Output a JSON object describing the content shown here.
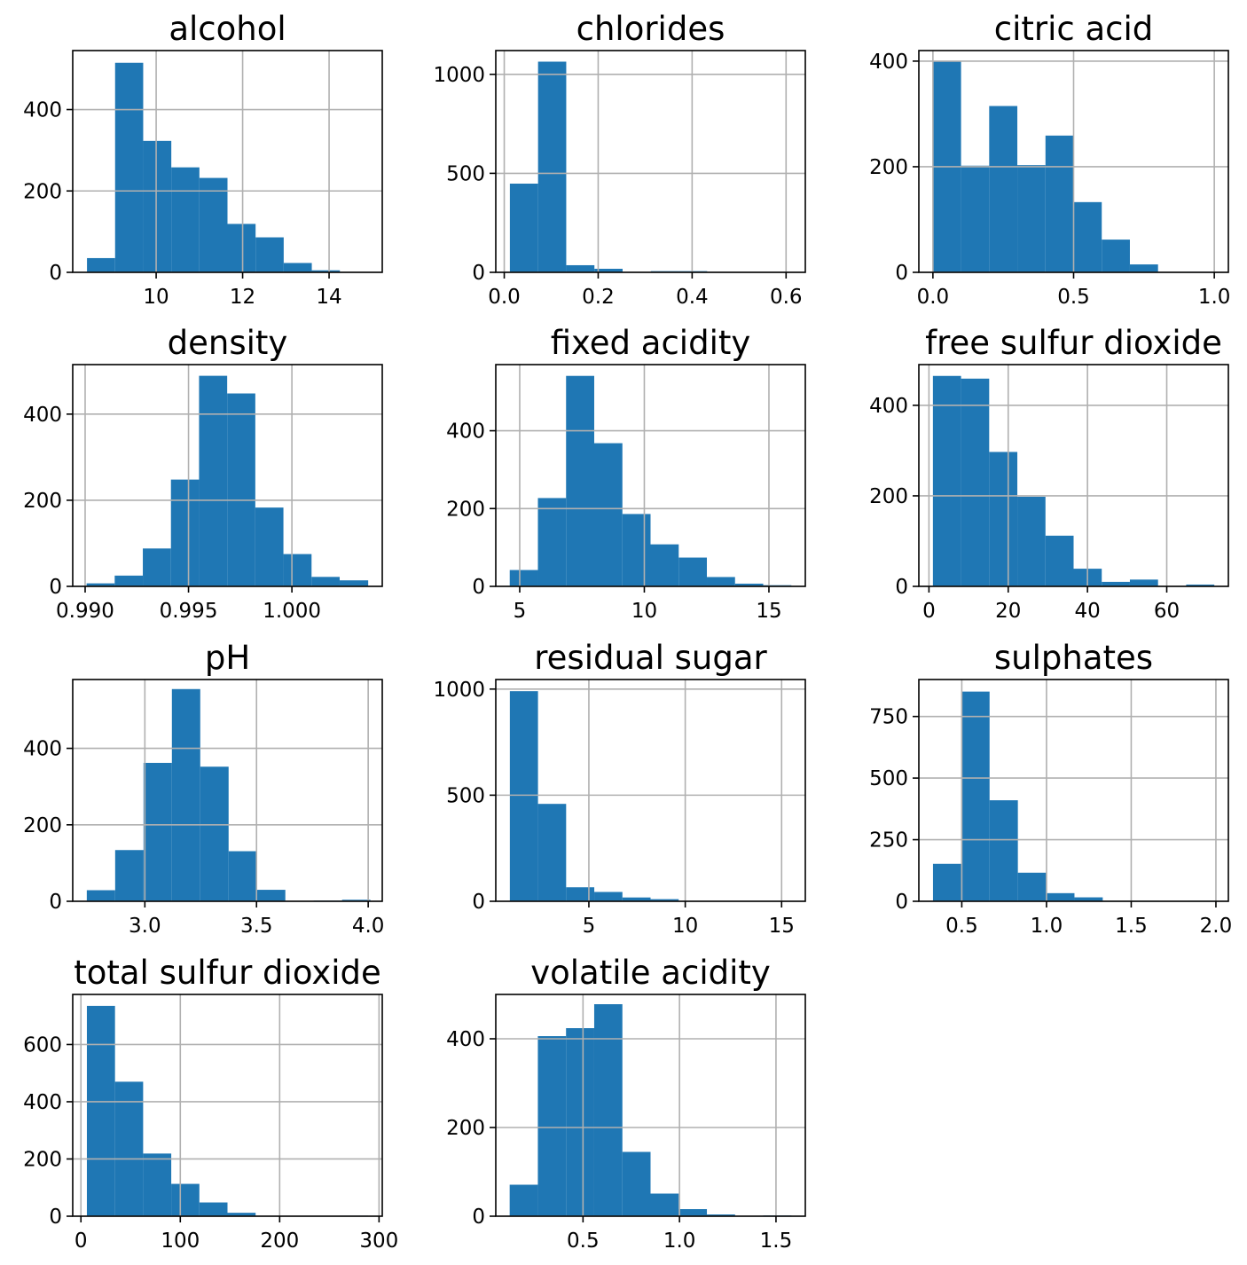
{
  "figure": {
    "bar_color": "#1f77b4",
    "grid_color": "#b0b0b0"
  },
  "chart_data": [
    {
      "type": "bar",
      "title": "alcohol",
      "grid": true,
      "xlim": [
        8.07,
        15.23
      ],
      "ylim": [
        0,
        545
      ],
      "bin_edges": [
        8.4,
        9.05,
        9.7,
        10.35,
        11.0,
        11.65,
        12.3,
        12.95,
        13.6,
        14.25,
        14.9
      ],
      "values": [
        35,
        515,
        323,
        258,
        232,
        119,
        86,
        23,
        5,
        1
      ],
      "xticks": [
        10,
        12,
        14
      ],
      "xtick_labels": [
        "10",
        "12",
        "14"
      ],
      "yticks": [
        0,
        200,
        400
      ],
      "ytick_labels": [
        "0",
        "200",
        "400"
      ]
    },
    {
      "type": "bar",
      "title": "chlorides",
      "grid": true,
      "xlim": [
        -0.018,
        0.641
      ],
      "ylim": [
        0,
        1120
      ],
      "bin_edges": [
        0.012,
        0.072,
        0.132,
        0.192,
        0.252,
        0.312,
        0.372,
        0.432,
        0.492,
        0.552,
        0.611
      ],
      "values": [
        448,
        1064,
        36,
        18,
        2,
        6,
        6,
        2,
        0,
        2
      ],
      "xticks": [
        0.0,
        0.2,
        0.4,
        0.6
      ],
      "xtick_labels": [
        "0.0",
        "0.2",
        "0.4",
        "0.6"
      ],
      "yticks": [
        0,
        500,
        1000
      ],
      "ytick_labels": [
        "0",
        "500",
        "1000"
      ]
    },
    {
      "type": "bar",
      "title": "citric acid",
      "grid": true,
      "xlim": [
        -0.05,
        1.05
      ],
      "ylim": [
        0,
        420
      ],
      "bin_edges": [
        0.0,
        0.1,
        0.2,
        0.3,
        0.4,
        0.5,
        0.6,
        0.7,
        0.8,
        0.9,
        1.0
      ],
      "values": [
        399,
        202,
        315,
        203,
        259,
        133,
        62,
        15,
        0,
        1
      ],
      "xticks": [
        0.0,
        0.5,
        1.0
      ],
      "xtick_labels": [
        "0.0",
        "0.5",
        "1.0"
      ],
      "yticks": [
        0,
        200,
        400
      ],
      "ytick_labels": [
        "0",
        "200",
        "400"
      ]
    },
    {
      "type": "bar",
      "title": "density",
      "grid": true,
      "xlim": [
        0.9894,
        1.00437
      ],
      "ylim": [
        0,
        515
      ],
      "bin_edges": [
        0.99007,
        0.99143,
        0.99279,
        0.99415,
        0.99551,
        0.99687,
        0.99823,
        0.99959,
        1.00095,
        1.00231,
        1.00369
      ],
      "values": [
        7,
        25,
        88,
        248,
        489,
        448,
        183,
        75,
        22,
        14
      ],
      "xticks": [
        0.99,
        0.995,
        1.0
      ],
      "xtick_labels": [
        "0.990",
        "0.995",
        "1.000"
      ],
      "yticks": [
        0,
        200,
        400
      ],
      "ytick_labels": [
        "0",
        "200",
        "400"
      ]
    },
    {
      "type": "bar",
      "title": "fixed acidity",
      "grid": true,
      "xlim": [
        4.04,
        16.46
      ],
      "ylim": [
        0,
        570
      ],
      "bin_edges": [
        4.6,
        5.73,
        6.86,
        7.99,
        9.12,
        10.25,
        11.38,
        12.51,
        13.64,
        14.77,
        15.9
      ],
      "values": [
        42,
        227,
        541,
        368,
        186,
        108,
        74,
        24,
        7,
        3
      ],
      "xticks": [
        5,
        10,
        15
      ],
      "xtick_labels": [
        "5",
        "10",
        "15"
      ],
      "yticks": [
        0,
        200,
        400
      ],
      "ytick_labels": [
        "0",
        "200",
        "400"
      ]
    },
    {
      "type": "bar",
      "title": "free sulfur dioxide",
      "grid": true,
      "xlim": [
        -2.55,
        75.55
      ],
      "ylim": [
        0,
        490
      ],
      "bin_edges": [
        1.0,
        8.1,
        15.2,
        22.3,
        29.4,
        36.5,
        43.6,
        50.7,
        57.8,
        64.9,
        72.0
      ],
      "values": [
        465,
        459,
        297,
        198,
        112,
        39,
        10,
        15,
        0,
        4
      ],
      "xticks": [
        0,
        20,
        40,
        60
      ],
      "xtick_labels": [
        "0",
        "20",
        "40",
        "60"
      ],
      "yticks": [
        0,
        200,
        400
      ],
      "ytick_labels": [
        "0",
        "200",
        "400"
      ]
    },
    {
      "type": "bar",
      "title": "pH",
      "grid": true,
      "xlim": [
        2.677,
        4.063
      ],
      "ylim": [
        0,
        580
      ],
      "bin_edges": [
        2.74,
        2.867,
        2.994,
        3.121,
        3.248,
        3.375,
        3.502,
        3.629,
        3.756,
        3.883,
        4.01
      ],
      "values": [
        29,
        134,
        362,
        555,
        352,
        131,
        30,
        0,
        2,
        4
      ],
      "xticks": [
        3.0,
        3.5,
        4.0
      ],
      "xtick_labels": [
        "3.0",
        "3.5",
        "4.0"
      ],
      "yticks": [
        0,
        200,
        400
      ],
      "ytick_labels": [
        "0",
        "200",
        "400"
      ]
    },
    {
      "type": "bar",
      "title": "residual sugar",
      "grid": true,
      "xlim": [
        0.17,
        16.23
      ],
      "ylim": [
        0,
        1045
      ],
      "bin_edges": [
        0.9,
        2.36,
        3.82,
        5.28,
        6.74,
        8.2,
        9.66,
        11.12,
        12.58,
        14.04,
        15.5
      ],
      "values": [
        990,
        459,
        66,
        44,
        18,
        10,
        2,
        0,
        2,
        2
      ],
      "xticks": [
        5,
        10,
        15
      ],
      "xtick_labels": [
        "5",
        "10",
        "15"
      ],
      "yticks": [
        0,
        500,
        1000
      ],
      "ytick_labels": [
        "0",
        "500",
        "1000"
      ]
    },
    {
      "type": "bar",
      "title": "sulphates",
      "grid": true,
      "xlim": [
        0.2465,
        2.0735
      ],
      "ylim": [
        0,
        900
      ],
      "bin_edges": [
        0.33,
        0.497,
        0.664,
        0.831,
        0.998,
        1.165,
        1.332,
        1.499,
        1.666,
        1.833,
        2.0
      ],
      "values": [
        152,
        851,
        410,
        116,
        33,
        16,
        2,
        2,
        0,
        2
      ],
      "xticks": [
        0.5,
        1.0,
        1.5,
        2.0
      ],
      "xtick_labels": [
        "0.5",
        "1.0",
        "1.5",
        "2.0"
      ],
      "yticks": [
        0,
        250,
        500,
        750
      ],
      "ytick_labels": [
        "0",
        "250",
        "500",
        "750"
      ]
    },
    {
      "type": "bar",
      "title": "total sulfur dioxide",
      "grid": true,
      "xlim": [
        -8.25,
        303.25
      ],
      "ylim": [
        0,
        775
      ],
      "bin_edges": [
        6.0,
        34.3,
        62.6,
        90.9,
        119.2,
        147.5,
        175.8,
        204.1,
        232.4,
        260.7,
        289.0
      ],
      "values": [
        735,
        470,
        219,
        113,
        48,
        12,
        0,
        0,
        0,
        2
      ],
      "xticks": [
        0,
        100,
        200,
        300
      ],
      "xtick_labels": [
        "0",
        "100",
        "200",
        "300"
      ],
      "yticks": [
        0,
        200,
        400,
        600
      ],
      "ytick_labels": [
        "0",
        "200",
        "400",
        "600"
      ]
    },
    {
      "type": "bar",
      "title": "volatile acidity",
      "grid": true,
      "xlim": [
        0.048,
        1.652
      ],
      "ylim": [
        0,
        500
      ],
      "bin_edges": [
        0.12,
        0.266,
        0.412,
        0.558,
        0.704,
        0.85,
        0.996,
        1.142,
        1.288,
        1.434,
        1.58
      ],
      "values": [
        71,
        406,
        424,
        478,
        145,
        51,
        16,
        4,
        0,
        2
      ],
      "xticks": [
        0.5,
        1.0,
        1.5
      ],
      "xtick_labels": [
        "0.5",
        "1.0",
        "1.5"
      ],
      "yticks": [
        0,
        200,
        400
      ],
      "ytick_labels": [
        "0",
        "200",
        "400"
      ]
    }
  ]
}
